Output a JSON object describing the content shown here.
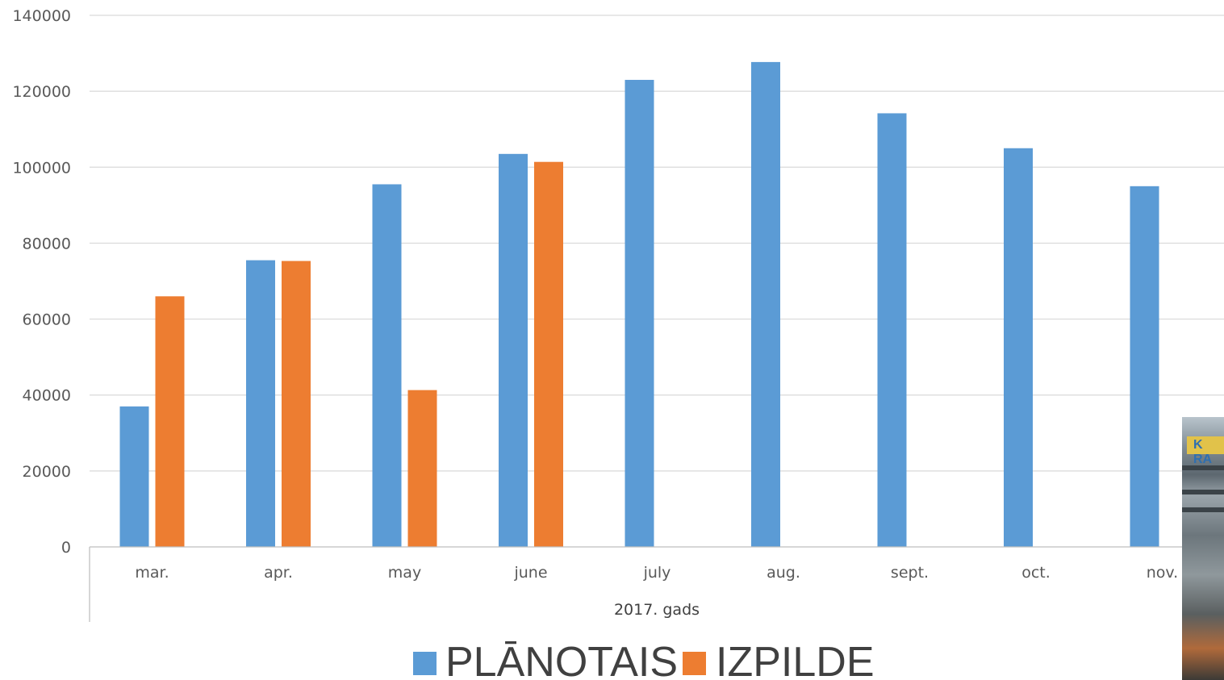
{
  "chart_data": {
    "type": "bar",
    "categories": [
      "mar.",
      "apr.",
      "may",
      "june",
      "july",
      "aug.",
      "sept.",
      "oct.",
      "nov."
    ],
    "series": [
      {
        "name": "PLĀNOTAIS",
        "color": "#5b9bd5",
        "values": [
          37000,
          75500,
          95500,
          103500,
          123000,
          127700,
          114200,
          105000,
          95000
        ]
      },
      {
        "name": "IZPILDE",
        "color": "#ed7d31",
        "values": [
          66000,
          75300,
          41300,
          101400,
          null,
          null,
          null,
          null,
          null
        ]
      }
    ],
    "xlabel": "2017. gads",
    "ylabel": "",
    "ylim": [
      0,
      140000
    ],
    "yticks": [
      "0",
      "20000",
      "40000",
      "60000",
      "80000",
      "100000",
      "120000",
      "140000"
    ],
    "grid": true,
    "legend_position": "bottom"
  },
  "photo": {
    "sign_text": "K RA"
  }
}
